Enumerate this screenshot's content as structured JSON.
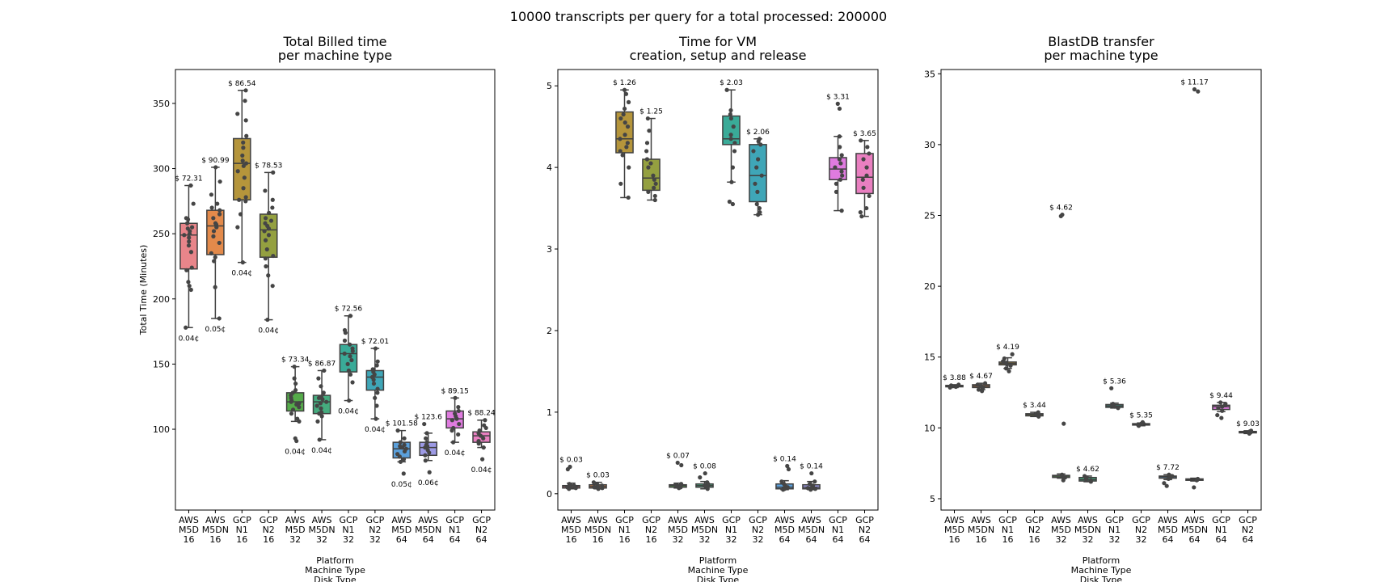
{
  "suptitle": "10000 transcripts per query for a total processed: 200000",
  "categories": [
    "AWS\nM5D\n16",
    "AWS\nM5DN\n16",
    "GCP\nN1\n16",
    "GCP\nN2\n16",
    "AWS\nM5D\n32",
    "AWS\nM5DN\n32",
    "GCP\nN1\n32",
    "GCP\nN2\n32",
    "AWS\nM5D\n64",
    "AWS\nM5DN\n64",
    "GCP\nN1\n64",
    "GCP\nN2\n64"
  ],
  "colors": [
    "#e8858a",
    "#e38a4b",
    "#b5953b",
    "#94a040",
    "#55ab4a",
    "#45ab7e",
    "#3aab98",
    "#3fa6b7",
    "#5ba0db",
    "#9d9ae5",
    "#df7bdf",
    "#e97fc0"
  ],
  "chart_data": [
    {
      "type": "box",
      "title": "Total Billed time\nper machine type",
      "ylabel": "Total Time (Minutes)",
      "xlabel": "Platform\nMachine Type\nDisk Type",
      "ylim": [
        38,
        376
      ],
      "yticks": [
        100,
        150,
        200,
        250,
        300,
        350
      ],
      "boxes": [
        {
          "cat": 0,
          "whislo": 178,
          "q1": 223,
          "med": 249,
          "q3": 258,
          "whishi": 287,
          "top": "$ 72.31",
          "bottom": "0.04¢",
          "points": [
            178,
            207,
            210,
            213,
            222,
            224,
            236,
            241,
            244,
            247,
            249,
            250,
            252,
            254,
            255,
            258,
            261,
            262,
            273,
            287
          ]
        },
        {
          "cat": 1,
          "whislo": 185,
          "q1": 234,
          "med": 256,
          "q3": 268,
          "whishi": 301,
          "top": "$ 90.99",
          "bottom": "0.05¢",
          "points": [
            185,
            209,
            229,
            232,
            235,
            243,
            248,
            252,
            255,
            257,
            258,
            262,
            265,
            268,
            270,
            273,
            280,
            290,
            301
          ]
        },
        {
          "cat": 2,
          "whislo": 228,
          "q1": 276,
          "med": 304,
          "q3": 323,
          "whishi": 360,
          "top": "$ 86.54",
          "bottom": "0.04¢",
          "points": [
            228,
            255,
            265,
            275,
            276,
            278,
            285,
            293,
            298,
            302,
            304,
            306,
            310,
            316,
            320,
            325,
            337,
            342,
            352,
            360
          ]
        },
        {
          "cat": 3,
          "whislo": 184,
          "q1": 232,
          "med": 253,
          "q3": 265,
          "whishi": 297,
          "top": "$ 78.53",
          "bottom": "0.04¢",
          "points": [
            184,
            210,
            218,
            225,
            231,
            233,
            238,
            245,
            249,
            252,
            254,
            256,
            258,
            260,
            262,
            266,
            270,
            276,
            283,
            297
          ]
        },
        {
          "cat": 4,
          "whislo": 106,
          "q1": 114,
          "med": 121,
          "q3": 128,
          "whishi": 148,
          "top": "$ 73.34",
          "bottom": "0.04¢",
          "points": [
            91,
            93,
            106,
            108,
            112,
            115,
            117,
            119,
            120,
            121,
            122,
            124,
            126,
            128,
            130,
            135,
            139,
            148
          ]
        },
        {
          "cat": 5,
          "whislo": 92,
          "q1": 112,
          "med": 121,
          "q3": 126,
          "whishi": 145,
          "top": "$ 86.87",
          "bottom": "0.04¢",
          "points": [
            92,
            106,
            110,
            112,
            113,
            116,
            118,
            120,
            121,
            123,
            124,
            125,
            128,
            133,
            139,
            145
          ]
        },
        {
          "cat": 6,
          "whislo": 122,
          "q1": 144,
          "med": 158,
          "q3": 165,
          "whishi": 187,
          "top": "$ 72.56",
          "bottom": "0.04¢",
          "points": [
            122,
            136,
            142,
            145,
            150,
            153,
            156,
            158,
            160,
            162,
            165,
            168,
            174,
            176,
            187
          ]
        },
        {
          "cat": 7,
          "whislo": 108,
          "q1": 130,
          "med": 140,
          "q3": 145,
          "whishi": 162,
          "top": "$ 72.01",
          "bottom": "0.04¢",
          "points": [
            108,
            118,
            124,
            128,
            131,
            135,
            138,
            140,
            142,
            144,
            146,
            149,
            152,
            162
          ]
        },
        {
          "cat": 8,
          "whislo": 75,
          "q1": 78,
          "med": 85,
          "q3": 90,
          "whishi": 99,
          "top": "$ 101.58",
          "bottom": "0.05¢",
          "points": [
            66,
            75,
            77,
            79,
            81,
            83,
            85,
            86,
            87,
            88,
            90,
            93,
            99
          ]
        },
        {
          "cat": 9,
          "whislo": 76,
          "q1": 80,
          "med": 86,
          "q3": 90,
          "whishi": 97,
          "top": "$ 123.6",
          "bottom": "0.06¢",
          "points": [
            67,
            76,
            80,
            82,
            84,
            86,
            87,
            88,
            90,
            93,
            97,
            104
          ]
        },
        {
          "cat": 10,
          "whislo": 90,
          "q1": 101,
          "med": 108,
          "q3": 114,
          "whishi": 124,
          "top": "$ 89.15",
          "bottom": "0.04¢",
          "points": [
            90,
            96,
            99,
            101,
            104,
            107,
            108,
            110,
            112,
            114,
            117,
            124
          ]
        },
        {
          "cat": 11,
          "whislo": 86,
          "q1": 90,
          "med": 95,
          "q3": 98,
          "whishi": 107,
          "top": "$ 88.24",
          "bottom": "0.04¢",
          "points": [
            77,
            86,
            89,
            91,
            93,
            95,
            97,
            99,
            101,
            103,
            107
          ]
        }
      ]
    },
    {
      "type": "box",
      "title": "Time for VM\ncreation, setup and release",
      "ylabel": "",
      "xlabel": "Platform\nMachine Type\nDisk Type",
      "ylim": [
        -0.2,
        5.2
      ],
      "yticks": [
        0,
        1,
        2,
        3,
        4,
        5
      ],
      "boxes": [
        {
          "cat": 0,
          "whislo": 0.06,
          "q1": 0.07,
          "med": 0.09,
          "q3": 0.1,
          "whishi": 0.13,
          "top": "$ 0.03",
          "bottom": "",
          "points": [
            0.06,
            0.07,
            0.08,
            0.09,
            0.1,
            0.11,
            0.12,
            0.3,
            0.33
          ]
        },
        {
          "cat": 1,
          "whislo": 0.06,
          "q1": 0.07,
          "med": 0.09,
          "q3": 0.11,
          "whishi": 0.14,
          "top": "$ 0.03",
          "bottom": "",
          "points": [
            0.06,
            0.07,
            0.08,
            0.09,
            0.1,
            0.12,
            0.14
          ]
        },
        {
          "cat": 2,
          "whislo": 3.63,
          "q1": 4.18,
          "med": 4.35,
          "q3": 4.68,
          "whishi": 4.95,
          "top": "$ 1.26",
          "bottom": "",
          "points": [
            3.63,
            3.8,
            4.0,
            4.15,
            4.2,
            4.25,
            4.3,
            4.35,
            4.4,
            4.5,
            4.55,
            4.6,
            4.65,
            4.72,
            4.8,
            4.9,
            4.95
          ]
        },
        {
          "cat": 3,
          "whislo": 3.6,
          "q1": 3.72,
          "med": 3.87,
          "q3": 4.1,
          "whishi": 4.6,
          "top": "$ 1.25",
          "bottom": "",
          "points": [
            3.6,
            3.65,
            3.7,
            3.75,
            3.8,
            3.85,
            3.9,
            4.0,
            4.05,
            4.1,
            4.2,
            4.3,
            4.45,
            4.6
          ]
        },
        {
          "cat": 4,
          "whislo": 0.07,
          "q1": 0.08,
          "med": 0.1,
          "q3": 0.11,
          "whishi": 0.13,
          "top": "$ 0.07",
          "bottom": "",
          "points": [
            0.07,
            0.08,
            0.09,
            0.1,
            0.11,
            0.12,
            0.35,
            0.38
          ]
        },
        {
          "cat": 5,
          "whislo": 0.06,
          "q1": 0.08,
          "med": 0.1,
          "q3": 0.12,
          "whishi": 0.15,
          "top": "$ 0.08",
          "bottom": "",
          "points": [
            0.06,
            0.08,
            0.09,
            0.1,
            0.12,
            0.14,
            0.2,
            0.25
          ]
        },
        {
          "cat": 6,
          "whislo": 3.82,
          "q1": 4.28,
          "med": 4.35,
          "q3": 4.63,
          "whishi": 4.95,
          "top": "$ 2.03",
          "bottom": "",
          "points": [
            3.55,
            3.58,
            3.82,
            4.0,
            4.2,
            4.3,
            4.35,
            4.4,
            4.5,
            4.6,
            4.65,
            4.7,
            4.95
          ]
        },
        {
          "cat": 7,
          "whislo": 3.42,
          "q1": 3.58,
          "med": 3.9,
          "q3": 4.28,
          "whishi": 4.35,
          "top": "$ 2.06",
          "bottom": "",
          "points": [
            3.42,
            3.45,
            3.5,
            3.55,
            3.7,
            3.8,
            3.9,
            4.0,
            4.1,
            4.2,
            4.28,
            4.32,
            4.35
          ]
        },
        {
          "cat": 8,
          "whislo": 0.05,
          "q1": 0.06,
          "med": 0.08,
          "q3": 0.12,
          "whishi": 0.16,
          "top": "$ 0.14",
          "bottom": "",
          "points": [
            0.05,
            0.06,
            0.08,
            0.1,
            0.12,
            0.15,
            0.3,
            0.34
          ]
        },
        {
          "cat": 9,
          "whislo": 0.05,
          "q1": 0.06,
          "med": 0.08,
          "q3": 0.11,
          "whishi": 0.15,
          "top": "$ 0.14",
          "bottom": "",
          "points": [
            0.05,
            0.06,
            0.07,
            0.08,
            0.1,
            0.12,
            0.15,
            0.25
          ]
        },
        {
          "cat": 10,
          "whislo": 3.47,
          "q1": 3.85,
          "med": 3.98,
          "q3": 4.12,
          "whishi": 4.38,
          "top": "$ 3.31",
          "bottom": "",
          "points": [
            3.47,
            3.7,
            3.8,
            3.85,
            3.9,
            3.95,
            4.0,
            4.05,
            4.1,
            4.15,
            4.25,
            4.38,
            4.72,
            4.78
          ]
        },
        {
          "cat": 11,
          "whislo": 3.4,
          "q1": 3.68,
          "med": 3.88,
          "q3": 4.17,
          "whishi": 4.33,
          "top": "$ 3.65",
          "bottom": "",
          "points": [
            3.4,
            3.45,
            3.5,
            3.65,
            3.75,
            3.85,
            3.9,
            4.0,
            4.1,
            4.17,
            4.25,
            4.33
          ]
        }
      ]
    },
    {
      "type": "box",
      "title": "BlastDB transfer\nper machine type",
      "ylabel": "",
      "xlabel": "Platform\nMachine Type\nDisk Type",
      "ylim": [
        4.2,
        35.3
      ],
      "yticks": [
        5,
        10,
        15,
        20,
        25,
        30,
        35
      ],
      "boxes": [
        {
          "cat": 0,
          "whislo": 12.85,
          "q1": 12.9,
          "med": 12.95,
          "q3": 13.0,
          "whishi": 13.05,
          "top": "$ 3.88",
          "bottom": "",
          "points": [
            12.85,
            12.9,
            12.95,
            13.0,
            13.05
          ]
        },
        {
          "cat": 1,
          "whislo": 12.7,
          "q1": 12.85,
          "med": 12.95,
          "q3": 13.05,
          "whishi": 13.15,
          "top": "$ 4.67",
          "bottom": "",
          "points": [
            12.6,
            12.7,
            12.85,
            12.95,
            13.05,
            13.15
          ]
        },
        {
          "cat": 2,
          "whislo": 14.2,
          "q1": 14.45,
          "med": 14.55,
          "q3": 14.65,
          "whishi": 14.95,
          "top": "$ 4.19",
          "bottom": "",
          "points": [
            14.0,
            14.2,
            14.4,
            14.5,
            14.6,
            14.7,
            14.9,
            15.2
          ]
        },
        {
          "cat": 3,
          "whislo": 10.8,
          "q1": 10.85,
          "med": 10.95,
          "q3": 11.0,
          "whishi": 11.1,
          "top": "$ 3.44",
          "bottom": "",
          "points": [
            10.8,
            10.9,
            10.95,
            11.0,
            11.1
          ]
        },
        {
          "cat": 4,
          "whislo": 6.45,
          "q1": 6.5,
          "med": 6.6,
          "q3": 6.65,
          "whishi": 6.75,
          "top": "$ 4.62",
          "bottom": "",
          "points": [
            6.3,
            6.5,
            6.6,
            6.7,
            10.3,
            24.95,
            25.05
          ]
        },
        {
          "cat": 5,
          "whislo": 6.2,
          "q1": 6.25,
          "med": 6.35,
          "q3": 6.5,
          "whishi": 6.6,
          "top": "$ 4.62",
          "bottom": "",
          "points": [
            6.2,
            6.3,
            6.4,
            6.5,
            6.6
          ]
        },
        {
          "cat": 6,
          "whislo": 11.4,
          "q1": 11.45,
          "med": 11.55,
          "q3": 11.65,
          "whishi": 11.75,
          "top": "$ 5.36",
          "bottom": "",
          "points": [
            11.4,
            11.5,
            11.6,
            11.7,
            12.8
          ]
        },
        {
          "cat": 7,
          "whislo": 10.15,
          "q1": 10.2,
          "med": 10.25,
          "q3": 10.3,
          "whishi": 10.35,
          "top": "$ 5.35",
          "bottom": "",
          "points": [
            10.15,
            10.2,
            10.3,
            10.4
          ]
        },
        {
          "cat": 8,
          "whislo": 6.35,
          "q1": 6.45,
          "med": 6.55,
          "q3": 6.6,
          "whishi": 6.7,
          "top": "$ 7.72",
          "bottom": "",
          "points": [
            5.9,
            6.1,
            6.4,
            6.5,
            6.6,
            6.7
          ]
        },
        {
          "cat": 9,
          "whislo": 6.25,
          "q1": 6.3,
          "med": 6.35,
          "q3": 6.4,
          "whishi": 6.45,
          "top": "$ 11.17",
          "bottom": "",
          "points": [
            5.8,
            6.3,
            6.4,
            33.75,
            33.9
          ]
        },
        {
          "cat": 10,
          "whislo": 11.15,
          "q1": 11.3,
          "med": 11.5,
          "q3": 11.6,
          "whishi": 11.8,
          "top": "$ 9.44",
          "bottom": "",
          "points": [
            10.7,
            10.9,
            11.2,
            11.4,
            11.5,
            11.6,
            11.7,
            11.8
          ]
        },
        {
          "cat": 11,
          "whislo": 9.6,
          "q1": 9.65,
          "med": 9.7,
          "q3": 9.75,
          "whishi": 9.8,
          "top": "$ 9.03",
          "bottom": "",
          "points": [
            9.6,
            9.65,
            9.7,
            9.75,
            9.8
          ]
        }
      ]
    }
  ]
}
